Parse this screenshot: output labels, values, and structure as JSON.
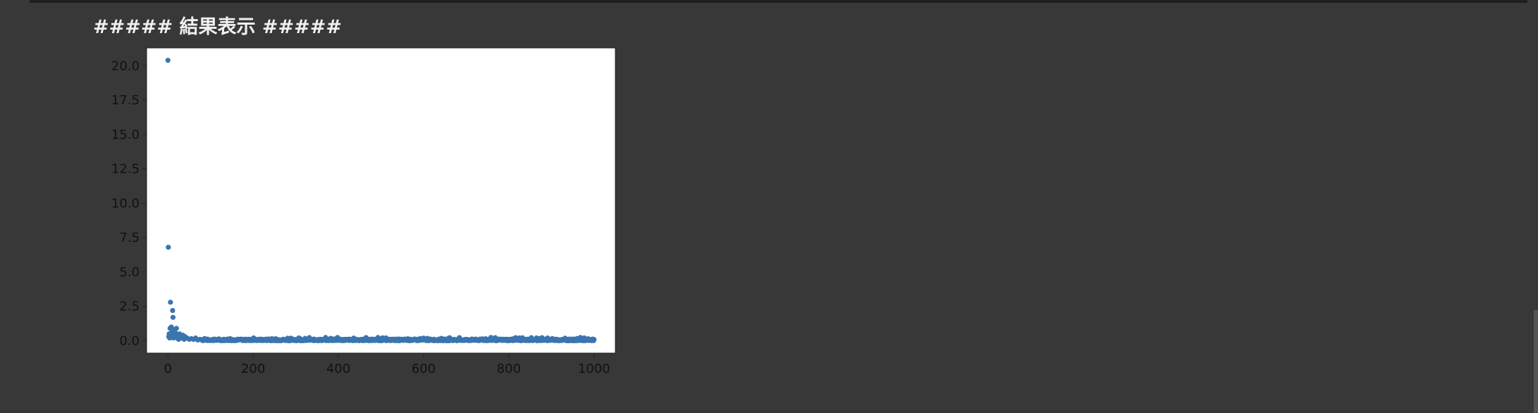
{
  "output": {
    "header_text": "##### 結果表示 #####"
  },
  "colors": {
    "background": "#383838",
    "plot_background": "#ffffff",
    "marker": "#3a75b0",
    "axis_text": "#111111"
  },
  "chart_data": {
    "type": "scatter",
    "title": "",
    "xlabel": "",
    "ylabel": "",
    "xlim": [
      -50,
      1050
    ],
    "ylim": [
      -0.9,
      21.3
    ],
    "xticks": [
      0,
      200,
      400,
      600,
      800,
      1000
    ],
    "yticks": [
      0.0,
      2.5,
      5.0,
      7.5,
      10.0,
      12.5,
      15.0,
      17.5,
      20.0
    ],
    "xtick_labels": [
      "0",
      "200",
      "400",
      "600",
      "800",
      "1000"
    ],
    "ytick_labels": [
      "0.0",
      "2.5",
      "5.0",
      "7.5",
      "10.0",
      "12.5",
      "15.0",
      "17.5",
      "20.0"
    ],
    "grid": false,
    "legend": false,
    "series": [
      {
        "points_x": [
          0,
          1,
          2,
          3,
          4,
          5,
          6,
          7,
          8,
          9,
          10,
          11,
          12,
          13,
          14,
          15,
          16,
          17,
          18,
          20,
          22,
          24,
          25,
          27,
          30,
          33,
          35,
          38,
          40,
          45,
          50,
          55,
          60,
          65,
          70,
          75,
          80
        ],
        "points_y": [
          20.4,
          6.8,
          0.3,
          0.5,
          0.2,
          0.9,
          2.8,
          0.4,
          1.0,
          0.6,
          0.3,
          2.2,
          1.7,
          0.2,
          0.8,
          0.4,
          0.5,
          0.6,
          0.3,
          0.9,
          0.2,
          0.4,
          0.1,
          0.5,
          0.3,
          0.2,
          0.4,
          0.1,
          0.3,
          0.2,
          0.1,
          0.15,
          0.1,
          0.2,
          0.05,
          0.1,
          0.08
        ],
        "tail_x_start": 80,
        "tail_x_end": 1000,
        "tail_y_max": 0.12
      }
    ]
  }
}
